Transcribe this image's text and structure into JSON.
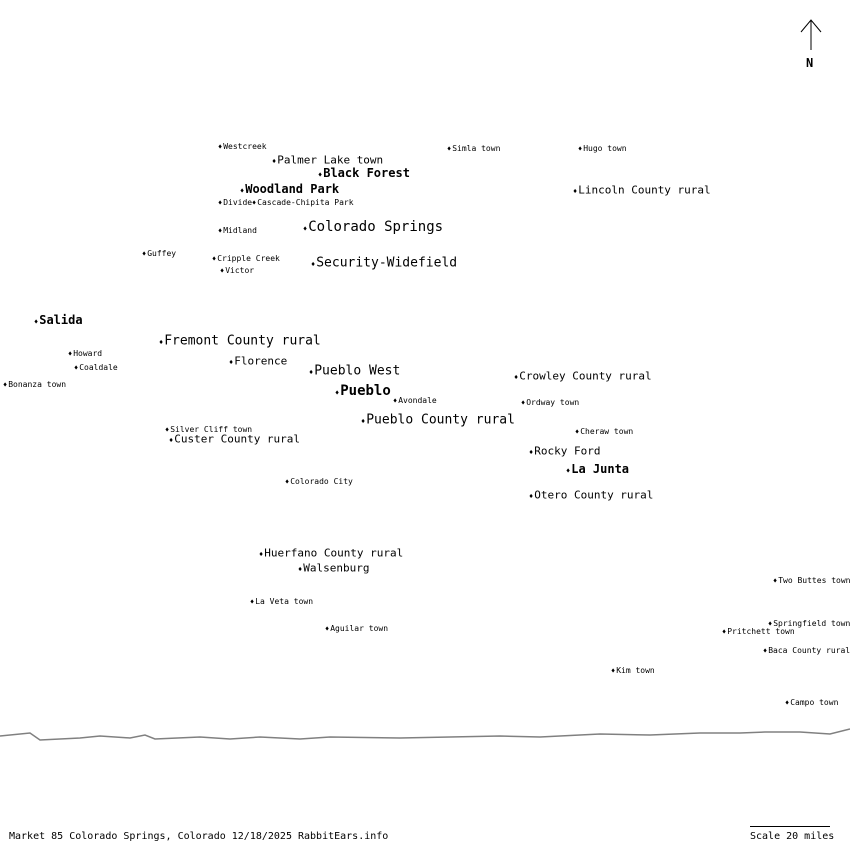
{
  "north_label": "N",
  "footer": "Market 85 Colorado Springs, Colorado 12/18/2025 RabbitEars.info",
  "scale_label": "Scale 20 miles",
  "colors": {
    "border_line": "#808080",
    "text": "#000000"
  },
  "places": [
    {
      "name": "Westcreek",
      "size": "s"
    },
    {
      "name": "Palmer Lake town",
      "size": "m"
    },
    {
      "name": "Black Forest",
      "size": "b"
    },
    {
      "name": "Woodland Park",
      "size": "b"
    },
    {
      "name": "Divide",
      "size": "s"
    },
    {
      "name": "Cascade-Chipita Park",
      "size": "s"
    },
    {
      "name": "Midland",
      "size": "s"
    },
    {
      "name": "Colorado Springs",
      "size": "xl"
    },
    {
      "name": "Guffey",
      "size": "s"
    },
    {
      "name": "Cripple Creek",
      "size": "s"
    },
    {
      "name": "Victor",
      "size": "s"
    },
    {
      "name": "Security-Widefield",
      "size": "l"
    },
    {
      "name": "Simla town",
      "size": "s"
    },
    {
      "name": "Hugo town",
      "size": "s"
    },
    {
      "name": "Lincoln County rural",
      "size": "m"
    },
    {
      "name": "Salida",
      "size": "b"
    },
    {
      "name": "Fremont County rural",
      "size": "l"
    },
    {
      "name": "Howard",
      "size": "s"
    },
    {
      "name": "Coaldale",
      "size": "s"
    },
    {
      "name": "Florence",
      "size": "m"
    },
    {
      "name": "Bonanza town",
      "size": "s"
    },
    {
      "name": "Pueblo West",
      "size": "l"
    },
    {
      "name": "Pueblo",
      "size": "xb"
    },
    {
      "name": "Avondale",
      "size": "s"
    },
    {
      "name": "Pueblo County rural",
      "size": "l"
    },
    {
      "name": "Crowley County rural",
      "size": "m"
    },
    {
      "name": "Ordway town",
      "size": "s"
    },
    {
      "name": "Silver Cliff town",
      "size": "s"
    },
    {
      "name": "Custer County rural",
      "size": "m"
    },
    {
      "name": "Cheraw town",
      "size": "s"
    },
    {
      "name": "Rocky Ford",
      "size": "m"
    },
    {
      "name": "La Junta",
      "size": "b"
    },
    {
      "name": "Otero County rural",
      "size": "m"
    },
    {
      "name": "Colorado City",
      "size": "s"
    },
    {
      "name": "Huerfano County rural",
      "size": "m"
    },
    {
      "name": "Walsenburg",
      "size": "m"
    },
    {
      "name": "La Veta town",
      "size": "s"
    },
    {
      "name": "Aguilar town",
      "size": "s"
    },
    {
      "name": "Two Buttes town",
      "size": "s"
    },
    {
      "name": "Springfield town",
      "size": "s"
    },
    {
      "name": "Pritchett town",
      "size": "s"
    },
    {
      "name": "Baca County rural",
      "size": "s"
    },
    {
      "name": "Kim town",
      "size": "s"
    },
    {
      "name": "Campo town",
      "size": "s"
    }
  ]
}
